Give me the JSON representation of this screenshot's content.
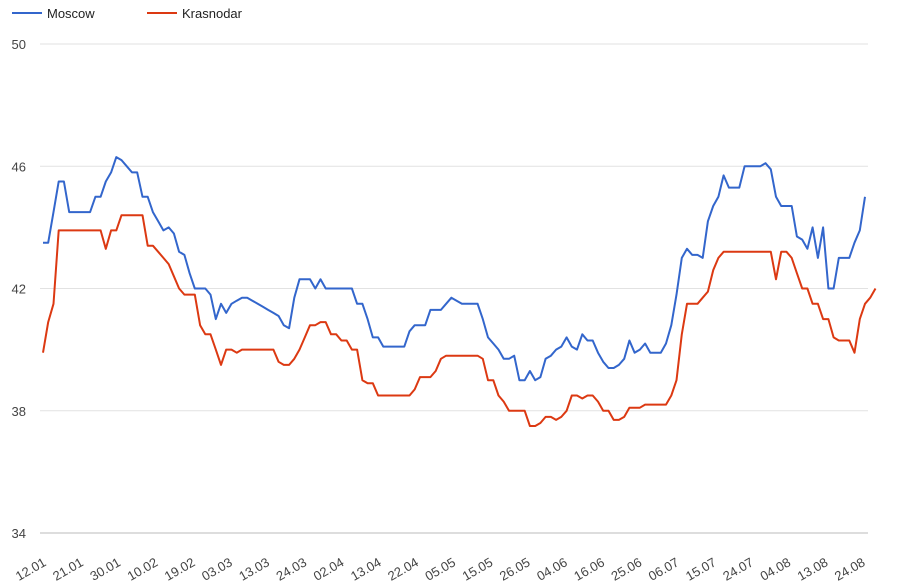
{
  "chart_data": {
    "type": "line",
    "title": "",
    "xlabel": "",
    "ylabel": "",
    "ylim": [
      34,
      50
    ],
    "yticks": [
      34,
      38,
      42,
      46,
      50
    ],
    "grid": true,
    "legend_position": "top-left",
    "xtick_labels": [
      "12.01",
      "21.01",
      "30.01",
      "10.02",
      "19.02",
      "03.03",
      "13.03",
      "24.03",
      "02.04",
      "13.04",
      "22.04",
      "05.05",
      "15.05",
      "26.05",
      "04.06",
      "16.06",
      "25.06",
      "06.07",
      "15.07",
      "24.07",
      "04.08",
      "13.08",
      "24.08"
    ],
    "series": [
      {
        "name": "Moscow",
        "color": "#3366cc",
        "values": [
          43.5,
          43.5,
          44.5,
          45.5,
          45.5,
          44.5,
          44.5,
          44.5,
          44.5,
          44.5,
          45,
          45,
          45.5,
          45.8,
          46.3,
          46.2,
          46,
          45.8,
          45.8,
          45,
          45,
          44.5,
          44.2,
          43.9,
          44,
          43.8,
          43.2,
          43.1,
          42.5,
          42,
          42,
          42,
          41.8,
          41,
          41.5,
          41.2,
          41.5,
          41.6,
          41.7,
          41.7,
          41.6,
          41.5,
          41.4,
          41.3,
          41.2,
          41.1,
          40.8,
          40.7,
          41.7,
          42.3,
          42.3,
          42.3,
          42,
          42.3,
          42,
          42,
          42,
          42,
          42,
          42,
          41.5,
          41.5,
          41,
          40.4,
          40.4,
          40.1,
          40.1,
          40.1,
          40.1,
          40.1,
          40.6,
          40.8,
          40.8,
          40.8,
          41.3,
          41.3,
          41.3,
          41.5,
          41.7,
          41.6,
          41.5,
          41.5,
          41.5,
          41.5,
          41,
          40.4,
          40.2,
          40,
          39.7,
          39.7,
          39.8,
          39,
          39,
          39.3,
          39,
          39.1,
          39.7,
          39.8,
          40,
          40.1,
          40.4,
          40.1,
          40,
          40.5,
          40.3,
          40.3,
          39.9,
          39.6,
          39.4,
          39.4,
          39.5,
          39.7,
          40.3,
          39.9,
          40,
          40.2,
          39.9,
          39.9,
          39.9,
          40.2,
          40.8,
          41.8,
          43,
          43.3,
          43.1,
          43.1,
          43,
          44.2,
          44.7,
          45,
          45.7,
          45.3,
          45.3,
          45.3,
          46,
          46,
          46,
          46,
          46.1,
          45.9,
          45,
          44.7,
          44.7,
          44.7,
          43.7,
          43.6,
          43.3,
          44,
          43,
          44,
          42,
          42,
          43,
          43,
          43,
          43.5,
          43.9,
          45
        ]
      },
      {
        "name": "Krasnodar",
        "color": "#dc3912",
        "values": [
          39.9,
          40.9,
          41.5,
          43.9,
          43.9,
          43.9,
          43.9,
          43.9,
          43.9,
          43.9,
          43.9,
          43.9,
          43.3,
          43.9,
          43.9,
          44.4,
          44.4,
          44.4,
          44.4,
          44.4,
          43.4,
          43.4,
          43.2,
          43,
          42.8,
          42.4,
          42,
          41.8,
          41.8,
          41.8,
          40.8,
          40.5,
          40.5,
          40,
          39.5,
          40,
          40,
          39.9,
          40,
          40,
          40,
          40,
          40,
          40,
          40,
          39.6,
          39.5,
          39.5,
          39.7,
          40,
          40.4,
          40.8,
          40.8,
          40.9,
          40.9,
          40.5,
          40.5,
          40.3,
          40.3,
          40,
          40,
          39,
          38.9,
          38.9,
          38.5,
          38.5,
          38.5,
          38.5,
          38.5,
          38.5,
          38.5,
          38.7,
          39.1,
          39.1,
          39.1,
          39.3,
          39.7,
          39.8,
          39.8,
          39.8,
          39.8,
          39.8,
          39.8,
          39.8,
          39.7,
          39,
          39,
          38.5,
          38.3,
          38,
          38,
          38,
          38,
          37.5,
          37.5,
          37.6,
          37.8,
          37.8,
          37.7,
          37.8,
          38,
          38.5,
          38.5,
          38.4,
          38.5,
          38.5,
          38.3,
          38,
          38,
          37.7,
          37.7,
          37.8,
          38.1,
          38.1,
          38.1,
          38.2,
          38.2,
          38.2,
          38.2,
          38.2,
          38.5,
          39,
          40.5,
          41.5,
          41.5,
          41.5,
          41.7,
          41.9,
          42.6,
          43,
          43.2,
          43.2,
          43.2,
          43.2,
          43.2,
          43.2,
          43.2,
          43.2,
          43.2,
          43.2,
          42.3,
          43.2,
          43.2,
          43,
          42.5,
          42,
          42,
          41.5,
          41.5,
          41,
          41,
          40.4,
          40.3,
          40.3,
          40.3,
          39.9,
          41,
          41.5,
          41.7,
          42
        ]
      }
    ]
  }
}
